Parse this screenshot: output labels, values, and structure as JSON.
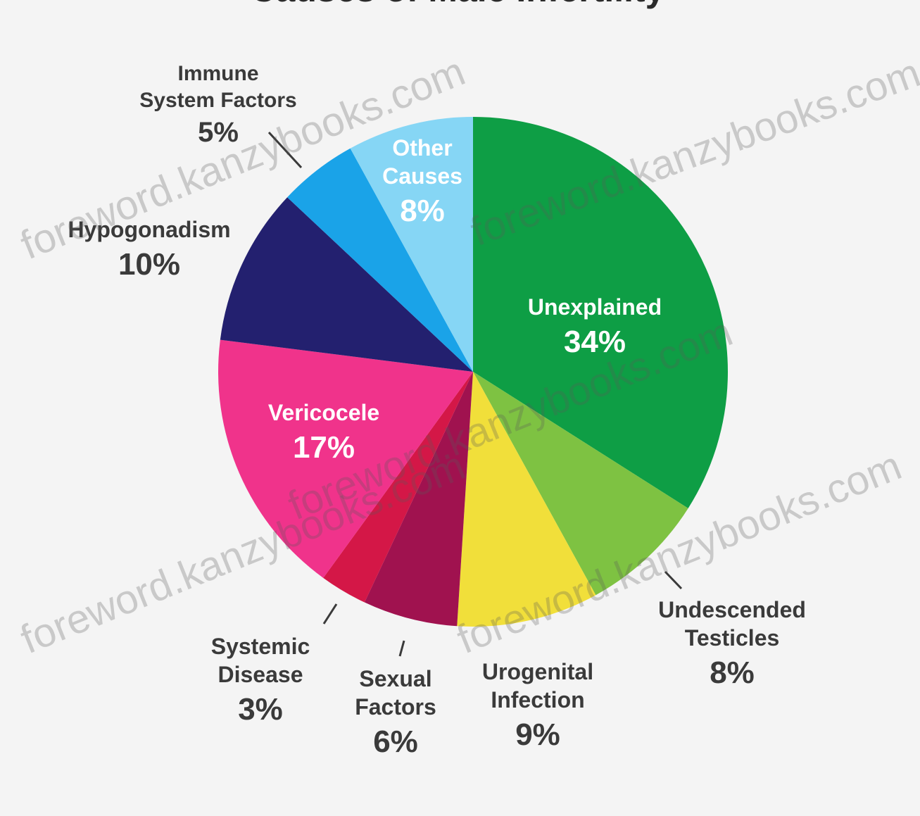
{
  "chart_data": {
    "type": "pie",
    "title": "Causes of Male Infertility",
    "slices": [
      {
        "label": "Unexplained",
        "value": 34,
        "pct_text": "34%",
        "color": "#0e9e45",
        "placement": "inside"
      },
      {
        "label": "Undescended Testicles",
        "label_lines": [
          "Undescended",
          "Testicles"
        ],
        "value": 8,
        "pct_text": "8%",
        "color": "#7ec242",
        "placement": "outside"
      },
      {
        "label": "Urogenital Infection",
        "label_lines": [
          "Urogenital",
          "Infection"
        ],
        "value": 9,
        "pct_text": "9%",
        "color": "#f1df3a",
        "placement": "outside"
      },
      {
        "label": "Sexual Factors",
        "label_lines": [
          "Sexual",
          "Factors"
        ],
        "value": 6,
        "pct_text": "6%",
        "color": "#a0124f",
        "placement": "outside"
      },
      {
        "label": "Systemic Disease",
        "label_lines": [
          "Systemic",
          "Disease"
        ],
        "value": 3,
        "pct_text": "3%",
        "color": "#d41747",
        "placement": "outside"
      },
      {
        "label": "Vericocele",
        "value": 17,
        "pct_text": "17%",
        "color": "#f0338b",
        "placement": "inside"
      },
      {
        "label": "Hypogonadism",
        "value": 10,
        "pct_text": "10%",
        "color": "#23206f",
        "placement": "outside"
      },
      {
        "label": "Immune System Factors",
        "label_lines": [
          "Immune",
          "System Factors"
        ],
        "value": 5,
        "pct_text": "5%",
        "color": "#1aa3e8",
        "placement": "outside"
      },
      {
        "label": "Other Causes",
        "label_lines": [
          "Other",
          "Causes"
        ],
        "value": 8,
        "pct_text": "8%",
        "color": "#86d6f5",
        "placement": "inside"
      }
    ],
    "start": "12 o'clock",
    "direction": "clockwise",
    "legend": "none"
  },
  "watermark": {
    "text": "foreword.kanzybooks.com"
  }
}
